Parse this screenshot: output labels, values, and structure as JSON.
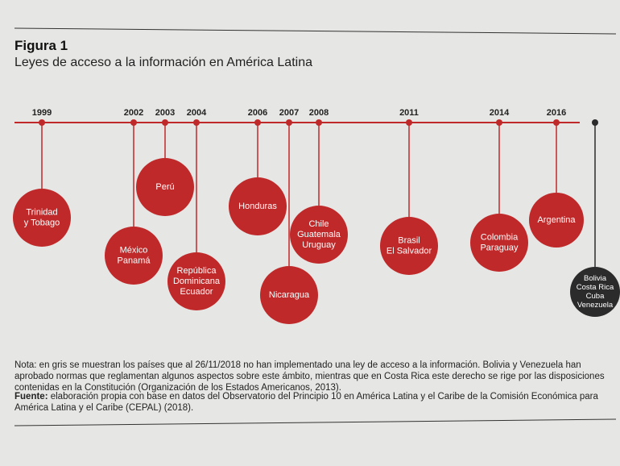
{
  "figure_label": "Figura 1",
  "title": "Leyes de acceso a la información en América Latina",
  "nodes": [
    {
      "year": "1999",
      "lines": [
        "Trinidad",
        "y Tobago"
      ]
    },
    {
      "year": "2002",
      "lines": [
        "México",
        "Panamá"
      ]
    },
    {
      "year": "2003",
      "lines": [
        "Perú"
      ]
    },
    {
      "year": "2004",
      "lines": [
        "República",
        "Dominicana",
        "Ecuador"
      ]
    },
    {
      "year": "2006",
      "lines": [
        "Honduras"
      ]
    },
    {
      "year": "2007",
      "lines": [
        "Nicaragua"
      ]
    },
    {
      "year": "2008",
      "lines": [
        "Chile",
        "Guatemala",
        "Uruguay"
      ]
    },
    {
      "year": "2011",
      "lines": [
        "Brasil",
        "El Salvador"
      ]
    },
    {
      "year": "2014",
      "lines": [
        "Colombia",
        "Paraguay"
      ]
    },
    {
      "year": "2016",
      "lines": [
        "Argentina"
      ]
    },
    {
      "lines": [
        "Bolivia",
        "Costa Rica",
        "Cuba",
        "Venezuela"
      ]
    }
  ],
  "note": "Nota: en gris se muestran los países que al 26/11/2018 no han implementado una ley de acceso a la información. Bolivia y Venezuela han aprobado normas que reglamentan algunos aspectos sobre este ámbito, mientras que en Costa Rica este derecho se rige por las disposiciones contenidas en la Constitución (Organización de los Estados Americanos, 2013).",
  "source_label": "Fuente:",
  "source": "elaboración propia con base en datos del Observatorio del Principio 10 en América Latina y el Caribe de la Comisión Económica para América Latina y el Caribe (CEPAL) (2018)."
}
